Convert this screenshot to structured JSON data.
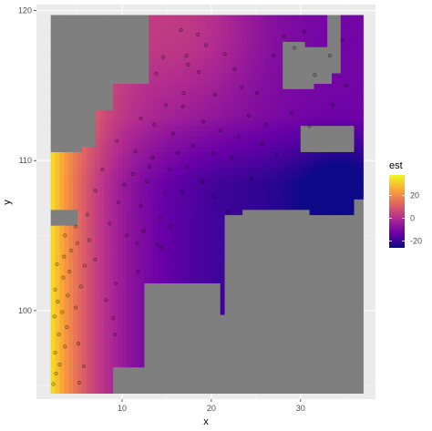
{
  "chart_data": {
    "type": "heatmap",
    "title": "",
    "xlabel": "x",
    "ylabel": "y",
    "xlim": [
      0.4,
      38.4
    ],
    "ylim": [
      94.1,
      120.4
    ],
    "x_ticks": [
      10,
      20,
      30
    ],
    "y_ticks": [
      100,
      110,
      120
    ],
    "x_tick_labels": [
      "10",
      "20",
      "30"
    ],
    "y_tick_labels": [
      "100",
      "110",
      "120"
    ],
    "grid": true,
    "background_color": "#ebebeb",
    "mask_color": "#7f7f7f",
    "grid_extent": {
      "x": [
        2,
        37
      ],
      "y": [
        94.5,
        119.5
      ]
    },
    "legend": {
      "title": "est",
      "position": "right",
      "range": [
        -26,
        38
      ],
      "breaks": [
        20,
        0,
        -20
      ],
      "break_labels": [
        "20",
        "0",
        "-20"
      ],
      "palette": [
        "#0d0887",
        "#6a00a8",
        "#b12a90",
        "#e16462",
        "#fca636",
        "#f0f921"
      ]
    },
    "surface": {
      "description_values": "est increases toward low x (west edge ~35) and decreases toward x~30, y~108 (~-25)",
      "sample_values": [
        {
          "x": 3,
          "y": 100,
          "est": 34
        },
        {
          "x": 3,
          "y": 108,
          "est": 24
        },
        {
          "x": 8,
          "y": 104,
          "est": 10
        },
        {
          "x": 12,
          "y": 112,
          "est": 0
        },
        {
          "x": 18,
          "y": 118,
          "est": 2
        },
        {
          "x": 22,
          "y": 108,
          "est": -16
        },
        {
          "x": 30,
          "y": 110,
          "est": -18
        },
        {
          "x": 35,
          "y": 108,
          "est": -26
        }
      ]
    },
    "points": [
      [
        2.3,
        95.1
      ],
      [
        2.6,
        95.8
      ],
      [
        3.0,
        96.4
      ],
      [
        2.5,
        97.2
      ],
      [
        3.6,
        97.6
      ],
      [
        2.9,
        98.4
      ],
      [
        3.8,
        98.9
      ],
      [
        2.4,
        99.6
      ],
      [
        3.3,
        99.9
      ],
      [
        2.8,
        100.6
      ],
      [
        3.9,
        101.0
      ],
      [
        2.5,
        101.4
      ],
      [
        3.4,
        102.2
      ],
      [
        4.1,
        102.6
      ],
      [
        2.7,
        103.1
      ],
      [
        3.5,
        103.6
      ],
      [
        4.3,
        104.0
      ],
      [
        5.0,
        104.5
      ],
      [
        3.6,
        105.0
      ],
      [
        4.8,
        105.6
      ],
      [
        6.1,
        106.4
      ],
      [
        5.2,
        95.2
      ],
      [
        5.7,
        96.3
      ],
      [
        5.1,
        97.8
      ],
      [
        4.8,
        100.2
      ],
      [
        5.4,
        101.6
      ],
      [
        5.8,
        103.0
      ],
      [
        6.3,
        104.7
      ],
      [
        7.0,
        103.4
      ],
      [
        9.2,
        98.4
      ],
      [
        9.0,
        99.5
      ],
      [
        8.2,
        100.7
      ],
      [
        9.3,
        101.8
      ],
      [
        11.7,
        104.5
      ],
      [
        10.5,
        105.0
      ],
      [
        12.4,
        105.3
      ],
      [
        13.9,
        104.4
      ],
      [
        11.8,
        102.6
      ],
      [
        8.6,
        105.8
      ],
      [
        7.0,
        108.0
      ],
      [
        7.8,
        109.4
      ],
      [
        9.6,
        107.2
      ],
      [
        10.3,
        108.4
      ],
      [
        11.2,
        109.1
      ],
      [
        12.1,
        107.0
      ],
      [
        12.8,
        108.6
      ],
      [
        13.4,
        110.2
      ],
      [
        11.5,
        110.6
      ],
      [
        9.4,
        111.3
      ],
      [
        14.2,
        106.2
      ],
      [
        14.8,
        107.8
      ],
      [
        15.3,
        109.4
      ],
      [
        16.2,
        110.5
      ],
      [
        15.7,
        111.8
      ],
      [
        13.6,
        112.4
      ],
      [
        14.9,
        113.7
      ],
      [
        16.9,
        114.5
      ],
      [
        17.4,
        116.4
      ],
      [
        18.6,
        115.9
      ],
      [
        19.1,
        112.6
      ],
      [
        18.0,
        111.0
      ],
      [
        20.2,
        110.5
      ],
      [
        21.0,
        112.0
      ],
      [
        22.3,
        110.2
      ],
      [
        23.1,
        111.6
      ],
      [
        20.3,
        107.6
      ],
      [
        21.8,
        106.6
      ],
      [
        19.0,
        108.6
      ],
      [
        16.7,
        107.9
      ],
      [
        17.3,
        109.6
      ],
      [
        24.2,
        113.0
      ],
      [
        25.1,
        114.5
      ],
      [
        24.5,
        108.8
      ],
      [
        27.0,
        117.0
      ],
      [
        28.1,
        118.3
      ],
      [
        29.3,
        117.5
      ],
      [
        30.4,
        118.6
      ],
      [
        31.6,
        115.7
      ],
      [
        33.3,
        117.0
      ],
      [
        34.7,
        118.0
      ],
      [
        35.1,
        115.0
      ],
      [
        25.7,
        111.1
      ],
      [
        27.3,
        110.4
      ],
      [
        26.1,
        112.4
      ],
      [
        22.6,
        116.1
      ],
      [
        21.5,
        117.1
      ],
      [
        19.4,
        117.7
      ],
      [
        18.5,
        118.4
      ],
      [
        16.6,
        118.7
      ],
      [
        17.2,
        117.0
      ],
      [
        13.8,
        115.8
      ],
      [
        14.6,
        116.9
      ],
      [
        12.1,
        112.8
      ],
      [
        13.1,
        109.6
      ],
      [
        15.4,
        105.6
      ],
      [
        14.4,
        104.2
      ],
      [
        16.8,
        113.6
      ],
      [
        20.4,
        114.4
      ],
      [
        23.4,
        114.9
      ],
      [
        29.0,
        113.2
      ],
      [
        31.0,
        112.3
      ],
      [
        33.6,
        113.7
      ]
    ]
  }
}
